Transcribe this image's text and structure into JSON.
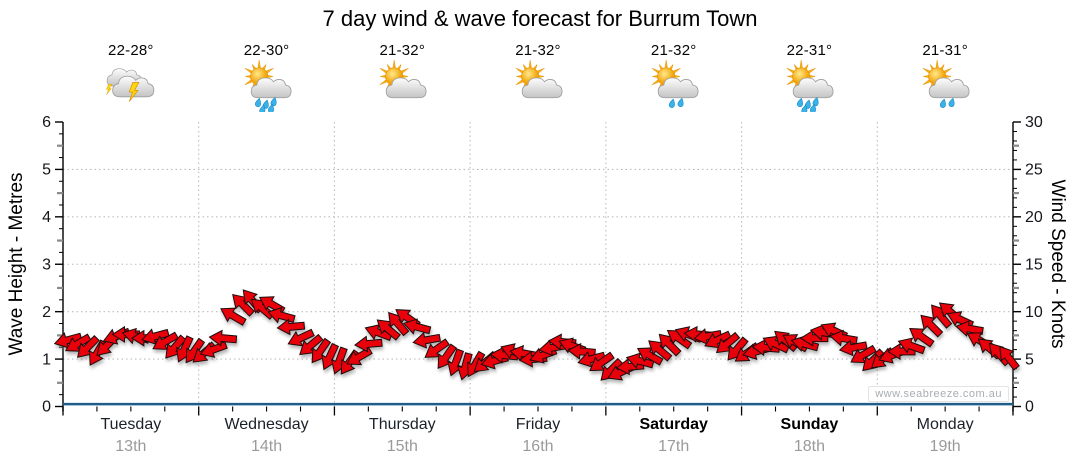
{
  "title": "7 day wind & wave forecast for Burrum Town",
  "watermark": "www.seabreeze.com.au",
  "days": [
    {
      "name": "Tuesday",
      "date": "13th",
      "temp": "22-28°",
      "icon": "storm",
      "bold": false
    },
    {
      "name": "Wednesday",
      "date": "14th",
      "temp": "22-30°",
      "icon": "rain-showers",
      "bold": false
    },
    {
      "name": "Thursday",
      "date": "15th",
      "temp": "21-32°",
      "icon": "partly-cloudy",
      "bold": false
    },
    {
      "name": "Friday",
      "date": "16th",
      "temp": "21-32°",
      "icon": "partly-cloudy",
      "bold": false
    },
    {
      "name": "Saturday",
      "date": "17th",
      "temp": "21-32°",
      "icon": "light-showers",
      "bold": true
    },
    {
      "name": "Sunday",
      "date": "18th",
      "temp": "22-31°",
      "icon": "rain-showers",
      "bold": true
    },
    {
      "name": "Monday",
      "date": "19th",
      "temp": "21-31°",
      "icon": "light-showers",
      "bold": false
    }
  ],
  "axes": {
    "left": {
      "title": "Wave Height - Metres",
      "ticks": [
        0,
        1,
        2,
        3,
        4,
        5,
        6
      ],
      "range": [
        0,
        6
      ]
    },
    "right": {
      "title": "Wind Speed - Knots",
      "ticks": [
        0,
        5,
        10,
        15,
        20,
        25,
        30
      ],
      "range": [
        0,
        30
      ]
    }
  },
  "colors": {
    "arrow_fill": "#e8000a",
    "arrow_stroke": "#1c0c0c",
    "wave_line": "#1e5d8c",
    "gridline": "#bdbdbd",
    "axis": "#000000",
    "tick_label": "#15161c",
    "date_label": "#9a9a9a"
  },
  "chart_data": {
    "type": "scatter",
    "subtype": "wind-direction-arrows",
    "title": "7 day wind & wave forecast for Burrum Town",
    "xlabel_days": [
      "Tuesday 13th",
      "Wednesday 14th",
      "Thursday 15th",
      "Friday 16th",
      "Saturday 17th",
      "Sunday 18th",
      "Monday 19th"
    ],
    "ylabel_left": "Wave Height - Metres",
    "ylabel_right": "Wind Speed - Knots",
    "ylim_left_metres": [
      0,
      6
    ],
    "ylim_right_knots": [
      0,
      30
    ],
    "grid_horizontal_metres": [
      1,
      2,
      3,
      4,
      5
    ],
    "grid_vertical_at_day_boundaries": true,
    "points_per_day": 14,
    "wave_height_m": 0.05,
    "wind_knots": [
      7.0,
      6.6,
      6.2,
      5.6,
      6.4,
      7.4,
      7.6,
      7.4,
      7.2,
      7.4,
      6.8,
      6.2,
      6.0,
      5.8,
      5.6,
      6.0,
      7.2,
      9.6,
      10.8,
      11.2,
      10.4,
      10.8,
      9.6,
      8.4,
      7.2,
      6.4,
      5.8,
      5.2,
      4.8,
      4.6,
      5.2,
      6.6,
      7.8,
      8.2,
      8.8,
      9.4,
      8.4,
      7.0,
      6.0,
      5.2,
      4.6,
      4.2,
      4.4,
      4.6,
      4.8,
      5.4,
      5.8,
      5.6,
      5.0,
      5.4,
      6.2,
      6.8,
      6.4,
      5.8,
      5.0,
      4.6,
      3.8,
      3.6,
      4.2,
      4.8,
      5.4,
      6.0,
      6.6,
      7.2,
      7.6,
      7.6,
      7.4,
      7.0,
      6.6,
      6.0,
      5.6,
      5.8,
      6.2,
      6.6,
      7.0,
      6.8,
      6.6,
      7.2,
      7.8,
      8.0,
      7.2,
      6.2,
      5.4,
      4.8,
      5.0,
      5.4,
      5.8,
      6.4,
      7.4,
      8.6,
      9.6,
      10.0,
      9.2,
      8.2,
      7.0,
      6.2,
      5.6,
      5.2
    ],
    "wind_dir_deg": [
      255,
      240,
      225,
      210,
      225,
      250,
      270,
      285,
      270,
      255,
      240,
      220,
      205,
      215,
      230,
      250,
      275,
      300,
      315,
      320,
      310,
      300,
      285,
      265,
      245,
      230,
      215,
      205,
      200,
      215,
      240,
      265,
      290,
      310,
      320,
      305,
      285,
      260,
      235,
      215,
      200,
      195,
      210,
      230,
      255,
      275,
      290,
      280,
      265,
      250,
      260,
      275,
      290,
      275,
      255,
      235,
      225,
      245,
      265,
      285,
      300,
      310,
      315,
      305,
      290,
      275,
      260,
      245,
      230,
      220,
      235,
      255,
      275,
      295,
      310,
      300,
      285,
      270,
      280,
      295,
      280,
      260,
      240,
      225,
      230,
      250,
      270,
      290,
      305,
      315,
      320,
      310,
      295,
      280,
      300,
      310,
      318,
      322
    ]
  }
}
